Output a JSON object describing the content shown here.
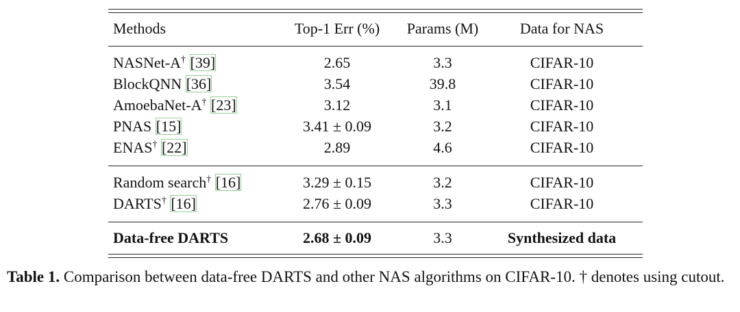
{
  "table": {
    "header": [
      "Methods",
      "Top-1 Err (%)",
      "Params (M)",
      "Data for NAS"
    ],
    "groups": [
      [
        {
          "method": "NASNet-A",
          "mark": "†",
          "cite": "[39]",
          "err": "2.65",
          "params": "3.3",
          "data": "CIFAR-10"
        },
        {
          "method": "BlockQNN",
          "cite": "[36]",
          "err": "3.54",
          "params": "39.8",
          "data": "CIFAR-10"
        },
        {
          "method": "AmoebaNet-A",
          "mark": "†",
          "cite": "[23]",
          "err": "3.12",
          "params": "3.1",
          "data": "CIFAR-10"
        },
        {
          "method": "PNAS",
          "cite": "[15]",
          "err": "3.41 ± 0.09",
          "params": "3.2",
          "data": "CIFAR-10"
        },
        {
          "method": "ENAS",
          "mark": "†",
          "cite": "[22]",
          "err": "2.89",
          "params": "4.6",
          "data": "CIFAR-10"
        }
      ],
      [
        {
          "method": "Random search",
          "mark": "†",
          "cite": "[16]",
          "err": "3.29 ± 0.15",
          "params": "3.2",
          "data": "CIFAR-10"
        },
        {
          "method": "DARTS",
          "mark": "†",
          "cite": "[16]",
          "err": "2.76 ± 0.09",
          "params": "3.3",
          "data": "CIFAR-10"
        }
      ],
      [
        {
          "method": "Data-free DARTS",
          "err": "2.68 ± 0.09",
          "params": "3.3",
          "data": "Synthesized data"
        }
      ]
    ]
  },
  "caption": {
    "label": "Table 1.",
    "text": "Comparison between data-free DARTS and other NAS algorithms on CIFAR-10. † denotes using cutout."
  }
}
